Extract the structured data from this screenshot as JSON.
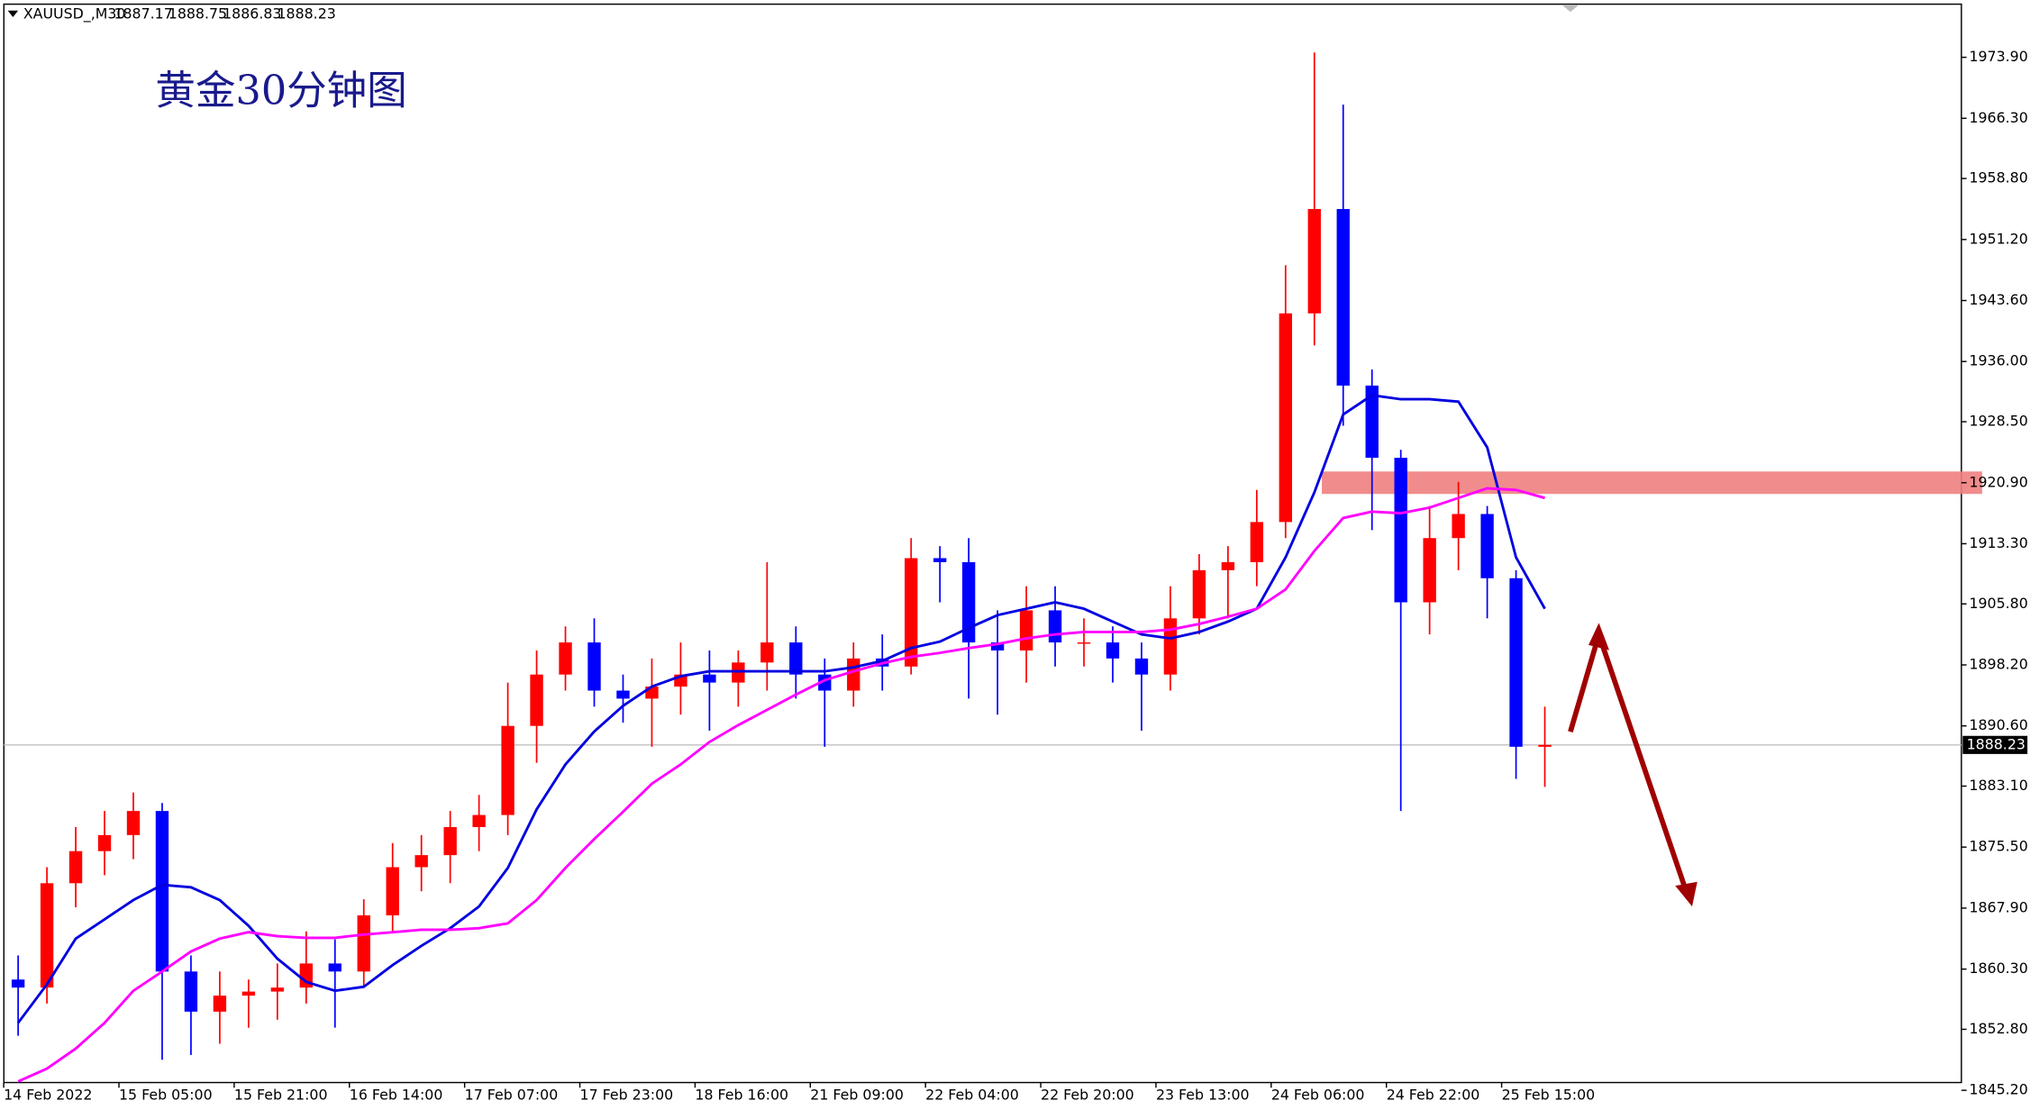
{
  "chart_data": {
    "type": "candlestick",
    "symbol": "XAUUSD_,M30",
    "ohlc": [
      1887.17,
      1888.75,
      1886.83,
      1888.23
    ],
    "title": "黄金30分钟图",
    "current_price": 1888.23,
    "up_color": "#ff0000",
    "down_color": "#0000ff",
    "categories": [
      "14 Feb 2022",
      null,
      null,
      null,
      "15 Feb 05:00",
      null,
      null,
      null,
      "15 Feb 21:00",
      null,
      null,
      null,
      "16 Feb 14:00",
      null,
      null,
      null,
      "17 Feb 07:00",
      null,
      null,
      null,
      "17 Feb 23:00",
      null,
      null,
      null,
      "18 Feb 16:00",
      null,
      null,
      null,
      "21 Feb 09:00",
      null,
      null,
      null,
      "22 Feb 04:00",
      null,
      null,
      null,
      "22 Feb 20:00",
      null,
      null,
      null,
      "23 Feb 13:00",
      null,
      null,
      null,
      "24 Feb 06:00",
      null,
      null,
      null,
      "24 Feb 22:00",
      null,
      null,
      null,
      "25 Feb 15:00",
      null
    ],
    "open": [
      1859,
      1858,
      1871,
      1875,
      1877,
      1880,
      1860,
      1855,
      1857,
      1857.5,
      1858,
      1861,
      1860,
      1867,
      1873,
      1874.5,
      1878,
      1879.5,
      1890.6,
      1897,
      1901,
      1895,
      1894,
      1895.5,
      1897,
      1896,
      1898.5,
      1901,
      1897,
      1895,
      1899,
      1898,
      1911.5,
      1911,
      1901,
      1900,
      1905,
      1901,
      1901,
      1899,
      1897,
      1904,
      1910,
      1911,
      1916,
      1942,
      1955,
      1933,
      1924,
      1906,
      1914,
      1917,
      1909,
      1888
    ],
    "high": [
      1862,
      1873,
      1878,
      1880,
      1882.3,
      1881,
      1862,
      1860,
      1859,
      1861,
      1865,
      1864,
      1869,
      1876,
      1877,
      1880,
      1882,
      1896,
      1900,
      1903,
      1904,
      1897,
      1899,
      1901,
      1900,
      1900,
      1911,
      1903,
      1899,
      1901,
      1902,
      1914,
      1913,
      1914,
      1905,
      1908,
      1908,
      1904,
      1903,
      1901,
      1908,
      1912,
      1913,
      1920,
      1948,
      1974.5,
      1968,
      1935,
      1925,
      1918,
      1921,
      1918,
      1910,
      1893
    ],
    "low": [
      1852,
      1856,
      1868,
      1872,
      1874,
      1849,
      1849.6,
      1851,
      1853,
      1854,
      1856,
      1853,
      1858,
      1865,
      1870,
      1871,
      1875,
      1877,
      1886,
      1895,
      1893,
      1891,
      1888,
      1892,
      1890,
      1893,
      1895,
      1894,
      1888,
      1893,
      1895,
      1897,
      1906,
      1894,
      1892,
      1896,
      1898,
      1898,
      1896,
      1890,
      1895,
      1902,
      1904,
      1908,
      1914,
      1938,
      1928,
      1915,
      1880,
      1902,
      1910,
      1904,
      1884,
      1883
    ],
    "close": [
      1858,
      1871,
      1875,
      1877,
      1880,
      1860,
      1855,
      1857,
      1857.5,
      1858,
      1861,
      1860,
      1867,
      1873,
      1874.5,
      1878,
      1879.5,
      1890.6,
      1897,
      1901,
      1895,
      1894,
      1895.5,
      1897,
      1896,
      1898.5,
      1901,
      1897,
      1895,
      1899,
      1898,
      1911.5,
      1911,
      1901,
      1900,
      1905,
      1901,
      1901,
      1899,
      1897,
      1904,
      1910,
      1911,
      1916,
      1942,
      1955,
      1933,
      1924,
      1906,
      1914,
      1917,
      1909,
      1888,
      1888.23
    ],
    "series": [
      {
        "color": "#0000e0",
        "values": [
          1853.6,
          1858.4,
          1864.1,
          1866.5,
          1868.9,
          1870.8,
          1870.5,
          1868.9,
          1865.7,
          1861.6,
          1858.7,
          1857.6,
          1858.1,
          1860.8,
          1863.2,
          1865.4,
          1868.1,
          1872.9,
          1880.2,
          1885.8,
          1889.9,
          1893.1,
          1895.5,
          1896.8,
          1897.4,
          1897.4,
          1897.4,
          1897.4,
          1897.4,
          1897.9,
          1898.7,
          1900.3,
          1901.1,
          1902.8,
          1904.4,
          1905.2,
          1906,
          1905.2,
          1903.6,
          1902,
          1901.5,
          1902.3,
          1903.6,
          1905.2,
          1911.6,
          1919.7,
          1929.4,
          1931.8,
          1931.3,
          1931.3,
          1931,
          1925.3,
          1911.6,
          1905.2
        ]
      },
      {
        "color": "#ff00ff",
        "values": [
          1846.3,
          1847.9,
          1850.4,
          1853.6,
          1857.6,
          1860,
          1862.5,
          1864.1,
          1864.9,
          1864.4,
          1864.2,
          1864.2,
          1864.6,
          1864.9,
          1865.2,
          1865.2,
          1865.4,
          1866,
          1868.9,
          1872.9,
          1876.5,
          1879.9,
          1883.4,
          1885.8,
          1888.6,
          1890.7,
          1892.6,
          1894.5,
          1896.3,
          1897.4,
          1898.4,
          1899.2,
          1899.7,
          1900.3,
          1900.8,
          1901.5,
          1902,
          1902.3,
          1902.3,
          1902.3,
          1902.6,
          1903.3,
          1904.2,
          1905.2,
          1907.6,
          1912.4,
          1916.5,
          1917.3,
          1917.1,
          1917.8,
          1919,
          1920.2,
          1920,
          1919
        ]
      }
    ],
    "resistance_zone": {
      "low": 1919.5,
      "high": 1922.3,
      "color": "#f08080"
    },
    "ylim": [
      1845.2,
      1980.2
    ],
    "yticks": [
      {
        "value": 1973.9,
        "label": "1973.90"
      },
      {
        "value": 1966.3,
        "label": "1966.30"
      },
      {
        "value": 1958.8,
        "label": "1958.80"
      },
      {
        "value": 1951.2,
        "label": "1951.20"
      },
      {
        "value": 1943.6,
        "label": "1943.60"
      },
      {
        "value": 1936,
        "label": "1936.00"
      },
      {
        "value": 1928.5,
        "label": "1928.50"
      },
      {
        "value": 1920.9,
        "label": "1920.90"
      },
      {
        "value": 1913.3,
        "label": "1913.30"
      },
      {
        "value": 1905.8,
        "label": "1905.80"
      },
      {
        "value": 1898.2,
        "label": "1898.20"
      },
      {
        "value": 1890.6,
        "label": "1890.60"
      },
      {
        "value": 1883.1,
        "label": "1883.10"
      },
      {
        "value": 1875.5,
        "label": "1875.50"
      },
      {
        "value": 1867.9,
        "label": "1867.90"
      },
      {
        "value": 1860.3,
        "label": "1860.30"
      },
      {
        "value": 1852.8,
        "label": "1852.80"
      },
      {
        "value": 1845.2,
        "label": "1845.20"
      }
    ]
  }
}
